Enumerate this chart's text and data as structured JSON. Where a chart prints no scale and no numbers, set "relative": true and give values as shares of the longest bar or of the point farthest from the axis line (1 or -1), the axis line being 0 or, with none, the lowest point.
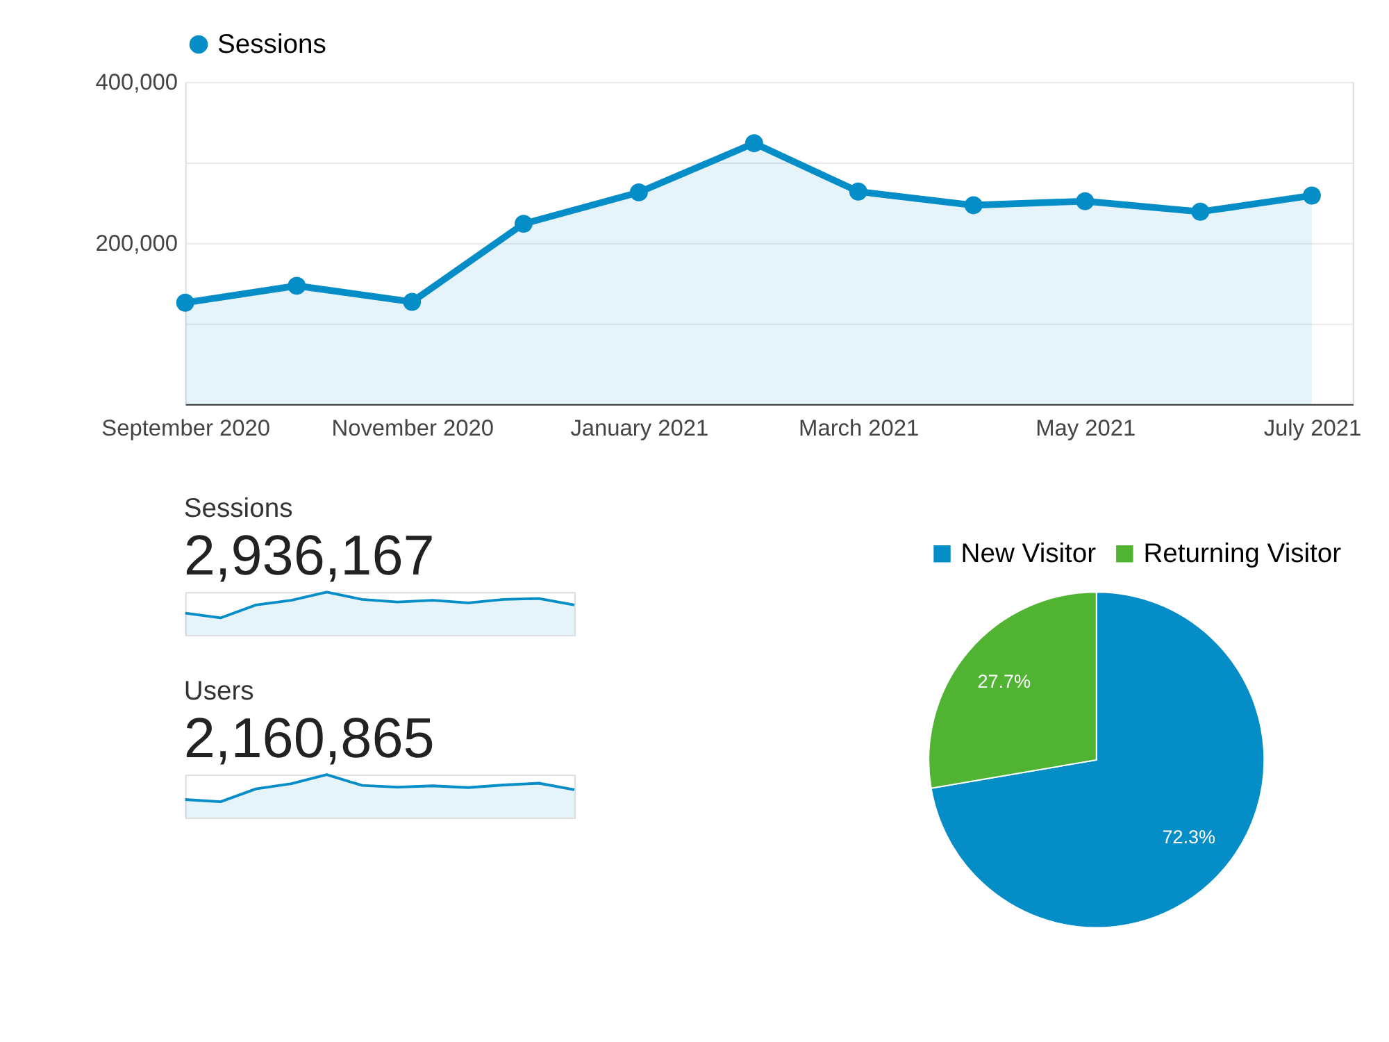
{
  "chart_data": [
    {
      "type": "area",
      "x": [
        "2020-09",
        "2020-10",
        "2020-11",
        "2020-12",
        "2021-01",
        "2021-02",
        "2021-03",
        "2021-04",
        "2021-05",
        "2021-06",
        "2021-07"
      ],
      "series": [
        {
          "name": "Sessions",
          "color": "#058dc7",
          "values": [
            126000,
            147000,
            127000,
            224000,
            263000,
            324000,
            264000,
            247000,
            252000,
            239000,
            259000
          ]
        }
      ],
      "xlim": [
        "2020-09-01",
        "2021-07-12"
      ],
      "xticks": [
        {
          "value": "2020-09",
          "label": "September 2020"
        },
        {
          "value": "2020-11",
          "label": "November 2020"
        },
        {
          "value": "2021-01",
          "label": "January 2021"
        },
        {
          "value": "2021-03",
          "label": "March 2021"
        },
        {
          "value": "2021-05",
          "label": "May 2021"
        },
        {
          "value": "2021-07",
          "label": "July 2021"
        }
      ],
      "ylim": [
        0,
        400000
      ],
      "yticks": [
        {
          "value": 0,
          "label": null
        },
        {
          "value": 100000,
          "label": null
        },
        {
          "value": 200000,
          "label": "200,000"
        },
        {
          "value": 300000,
          "label": null
        },
        {
          "value": 400000,
          "label": "400,000"
        }
      ],
      "grid": "y",
      "legend": "top left",
      "marker": "circle"
    },
    {
      "type": "area",
      "title": "Sessions",
      "subtitle": "2,936,167",
      "relative": true,
      "categories": [
        null,
        null,
        null,
        null,
        null,
        null,
        null,
        null,
        null,
        null,
        null,
        null
      ],
      "series": [
        {
          "color": "#058dc7",
          "values": [
            0.51,
            0.4,
            0.7,
            0.81,
            1,
            0.83,
            0.77,
            0.81,
            0.75,
            0.83,
            0.85,
            0.7
          ]
        }
      ]
    },
    {
      "type": "area",
      "title": "Users",
      "subtitle": "2,160,865",
      "relative": true,
      "categories": [
        null,
        null,
        null,
        null,
        null,
        null,
        null,
        null,
        null,
        null,
        null,
        null
      ],
      "series": [
        {
          "color": "#058dc7",
          "values": [
            0.42,
            0.37,
            0.67,
            0.79,
            1,
            0.75,
            0.71,
            0.74,
            0.7,
            0.76,
            0.8,
            0.65
          ]
        }
      ]
    },
    {
      "type": "pie",
      "categories": [
        "New Visitor",
        "Returning Visitor"
      ],
      "values": [
        72.3,
        27.7
      ],
      "colors": [
        "#058dc7",
        "#50b432"
      ],
      "value_labels": [
        "72.3%",
        "27.7%"
      ],
      "legend": "top"
    }
  ]
}
